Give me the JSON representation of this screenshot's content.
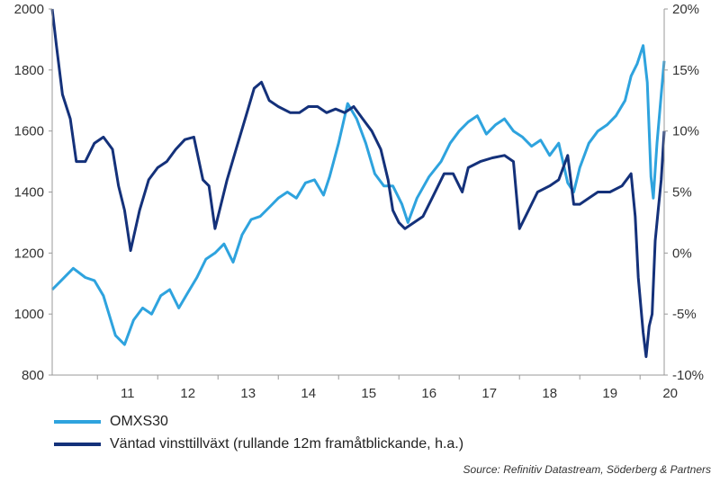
{
  "chart_data": {
    "type": "line",
    "title": "",
    "xlabel": "",
    "ylabel_left": "",
    "ylabel_right": "",
    "x_ticks": [
      "11",
      "12",
      "13",
      "14",
      "15",
      "16",
      "17",
      "18",
      "19",
      "20"
    ],
    "y_left": {
      "lim": [
        800,
        2000
      ],
      "ticks": [
        "800",
        "1000",
        "1200",
        "1400",
        "1600",
        "1800",
        "2000"
      ]
    },
    "y_right": {
      "lim": [
        -10,
        20
      ],
      "ticks": [
        "-10%",
        "-5%",
        "0%",
        "5%",
        "10%",
        "15%",
        "20%"
      ]
    },
    "x_range": [
      2010.25,
      2020.4
    ],
    "grid": false,
    "legend_position": "bottom-left",
    "series": [
      {
        "name": "OMXS30",
        "axis": "left",
        "color": "#2EA3DE",
        "points": [
          [
            2010.25,
            1080
          ],
          [
            2010.4,
            1110
          ],
          [
            2010.6,
            1150
          ],
          [
            2010.8,
            1120
          ],
          [
            2010.95,
            1110
          ],
          [
            2011.1,
            1060
          ],
          [
            2011.3,
            930
          ],
          [
            2011.45,
            900
          ],
          [
            2011.6,
            980
          ],
          [
            2011.75,
            1020
          ],
          [
            2011.9,
            1000
          ],
          [
            2012.05,
            1060
          ],
          [
            2012.2,
            1080
          ],
          [
            2012.35,
            1020
          ],
          [
            2012.5,
            1070
          ],
          [
            2012.65,
            1120
          ],
          [
            2012.8,
            1180
          ],
          [
            2012.95,
            1200
          ],
          [
            2013.1,
            1230
          ],
          [
            2013.25,
            1170
          ],
          [
            2013.4,
            1260
          ],
          [
            2013.55,
            1310
          ],
          [
            2013.7,
            1320
          ],
          [
            2013.85,
            1350
          ],
          [
            2014.0,
            1380
          ],
          [
            2014.15,
            1400
          ],
          [
            2014.3,
            1380
          ],
          [
            2014.45,
            1430
          ],
          [
            2014.6,
            1440
          ],
          [
            2014.75,
            1390
          ],
          [
            2014.85,
            1450
          ],
          [
            2015.0,
            1560
          ],
          [
            2015.15,
            1690
          ],
          [
            2015.3,
            1640
          ],
          [
            2015.45,
            1560
          ],
          [
            2015.6,
            1460
          ],
          [
            2015.75,
            1420
          ],
          [
            2015.9,
            1420
          ],
          [
            2016.05,
            1360
          ],
          [
            2016.15,
            1300
          ],
          [
            2016.3,
            1380
          ],
          [
            2016.5,
            1450
          ],
          [
            2016.7,
            1500
          ],
          [
            2016.85,
            1560
          ],
          [
            2017.0,
            1600
          ],
          [
            2017.15,
            1630
          ],
          [
            2017.3,
            1650
          ],
          [
            2017.45,
            1590
          ],
          [
            2017.6,
            1620
          ],
          [
            2017.75,
            1640
          ],
          [
            2017.9,
            1600
          ],
          [
            2018.05,
            1580
          ],
          [
            2018.2,
            1550
          ],
          [
            2018.35,
            1570
          ],
          [
            2018.5,
            1520
          ],
          [
            2018.65,
            1560
          ],
          [
            2018.8,
            1430
          ],
          [
            2018.9,
            1400
          ],
          [
            2019.0,
            1480
          ],
          [
            2019.15,
            1560
          ],
          [
            2019.3,
            1600
          ],
          [
            2019.45,
            1620
          ],
          [
            2019.6,
            1650
          ],
          [
            2019.75,
            1700
          ],
          [
            2019.85,
            1780
          ],
          [
            2019.95,
            1820
          ],
          [
            2020.05,
            1880
          ],
          [
            2020.12,
            1760
          ],
          [
            2020.18,
            1450
          ],
          [
            2020.22,
            1380
          ],
          [
            2020.28,
            1560
          ],
          [
            2020.35,
            1720
          ],
          [
            2020.4,
            1830
          ]
        ]
      },
      {
        "name": "Väntad vinsttillväxt (rullande 12m framåtblickande, h.a.)",
        "axis": "right",
        "color": "#14317A",
        "points": [
          [
            2010.25,
            20
          ],
          [
            2010.32,
            17
          ],
          [
            2010.42,
            13
          ],
          [
            2010.55,
            11
          ],
          [
            2010.65,
            7.5
          ],
          [
            2010.8,
            7.5
          ],
          [
            2010.95,
            9
          ],
          [
            2011.1,
            9.5
          ],
          [
            2011.25,
            8.5
          ],
          [
            2011.35,
            5.5
          ],
          [
            2011.45,
            3.5
          ],
          [
            2011.55,
            0.2
          ],
          [
            2011.7,
            3.5
          ],
          [
            2011.85,
            6
          ],
          [
            2012.0,
            7
          ],
          [
            2012.15,
            7.5
          ],
          [
            2012.3,
            8.5
          ],
          [
            2012.45,
            9.3
          ],
          [
            2012.6,
            9.5
          ],
          [
            2012.75,
            6
          ],
          [
            2012.85,
            5.5
          ],
          [
            2012.95,
            2
          ],
          [
            2013.05,
            4
          ],
          [
            2013.15,
            6
          ],
          [
            2013.3,
            8.5
          ],
          [
            2013.45,
            11
          ],
          [
            2013.6,
            13.5
          ],
          [
            2013.72,
            14
          ],
          [
            2013.85,
            12.5
          ],
          [
            2014.0,
            12
          ],
          [
            2014.2,
            11.5
          ],
          [
            2014.35,
            11.5
          ],
          [
            2014.5,
            12
          ],
          [
            2014.65,
            12
          ],
          [
            2014.8,
            11.5
          ],
          [
            2014.95,
            11.8
          ],
          [
            2015.1,
            11.5
          ],
          [
            2015.25,
            12
          ],
          [
            2015.4,
            11
          ],
          [
            2015.55,
            10
          ],
          [
            2015.7,
            8.5
          ],
          [
            2015.82,
            6
          ],
          [
            2015.9,
            3.5
          ],
          [
            2016.0,
            2.5
          ],
          [
            2016.1,
            2
          ],
          [
            2016.25,
            2.5
          ],
          [
            2016.4,
            3
          ],
          [
            2016.55,
            4.5
          ],
          [
            2016.75,
            6.5
          ],
          [
            2016.9,
            6.5
          ],
          [
            2017.05,
            5
          ],
          [
            2017.15,
            7
          ],
          [
            2017.35,
            7.5
          ],
          [
            2017.55,
            7.8
          ],
          [
            2017.75,
            8
          ],
          [
            2017.9,
            7.5
          ],
          [
            2018.0,
            2
          ],
          [
            2018.15,
            3.5
          ],
          [
            2018.3,
            5
          ],
          [
            2018.5,
            5.5
          ],
          [
            2018.65,
            6
          ],
          [
            2018.8,
            8
          ],
          [
            2018.9,
            4
          ],
          [
            2019.0,
            4
          ],
          [
            2019.15,
            4.5
          ],
          [
            2019.3,
            5
          ],
          [
            2019.5,
            5
          ],
          [
            2019.7,
            5.5
          ],
          [
            2019.85,
            6.5
          ],
          [
            2019.92,
            3
          ],
          [
            2019.97,
            -2
          ],
          [
            2020.05,
            -6.5
          ],
          [
            2020.1,
            -8.5
          ],
          [
            2020.15,
            -6
          ],
          [
            2020.2,
            -5
          ],
          [
            2020.25,
            1
          ],
          [
            2020.3,
            3.5
          ],
          [
            2020.35,
            6
          ],
          [
            2020.4,
            10
          ]
        ]
      }
    ]
  },
  "source": "Source: Refinitiv Datastream, Söderberg & Partners"
}
